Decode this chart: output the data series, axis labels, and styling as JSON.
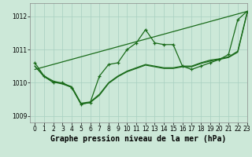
{
  "background_color": "#cce8d8",
  "grid_color": "#a8cfc0",
  "line_color": "#1a6b1a",
  "title": "Graphe pression niveau de la mer (hPa)",
  "xlim": [
    -0.5,
    23
  ],
  "ylim": [
    1008.8,
    1012.4
  ],
  "yticks": [
    1009,
    1010,
    1011,
    1012
  ],
  "xticks": [
    0,
    1,
    2,
    3,
    4,
    5,
    6,
    7,
    8,
    9,
    10,
    11,
    12,
    13,
    14,
    15,
    16,
    17,
    18,
    19,
    20,
    21,
    22,
    23
  ],
  "series_wiggly": {
    "x": [
      0,
      1,
      2,
      3,
      4,
      5,
      6,
      7,
      8,
      9,
      10,
      11,
      12,
      13,
      14,
      15,
      16,
      17,
      18,
      19,
      20,
      21,
      22,
      23
    ],
    "y": [
      1010.6,
      1010.2,
      1010.0,
      1010.0,
      1009.85,
      1009.35,
      1009.4,
      1010.2,
      1010.55,
      1010.6,
      1011.0,
      1011.2,
      1011.6,
      1011.2,
      1011.15,
      1011.15,
      1010.5,
      1010.4,
      1010.5,
      1010.6,
      1010.7,
      1010.85,
      1011.9,
      1012.15
    ]
  },
  "series_linear1": {
    "x": [
      0,
      23
    ],
    "y": [
      1010.4,
      1012.15
    ]
  },
  "series_smooth1": {
    "x": [
      0,
      1,
      2,
      3,
      4,
      5,
      6,
      7,
      8,
      9,
      10,
      11,
      12,
      13,
      14,
      15,
      16,
      17,
      18,
      19,
      20,
      21,
      22,
      23
    ],
    "y": [
      1010.5,
      1010.2,
      1010.05,
      1009.98,
      1009.88,
      1009.38,
      1009.42,
      1009.65,
      1010.0,
      1010.2,
      1010.35,
      1010.45,
      1010.55,
      1010.5,
      1010.45,
      1010.45,
      1010.5,
      1010.5,
      1010.6,
      1010.68,
      1010.72,
      1010.78,
      1010.95,
      1012.1
    ]
  },
  "series_smooth2": {
    "x": [
      0,
      1,
      2,
      3,
      4,
      5,
      6,
      7,
      8,
      9,
      10,
      11,
      12,
      13,
      14,
      15,
      16,
      17,
      18,
      19,
      20,
      21,
      22,
      23
    ],
    "y": [
      1010.5,
      1010.18,
      1010.02,
      1009.96,
      1009.86,
      1009.36,
      1009.4,
      1009.62,
      1009.98,
      1010.18,
      1010.33,
      1010.43,
      1010.53,
      1010.48,
      1010.43,
      1010.43,
      1010.48,
      1010.48,
      1010.58,
      1010.65,
      1010.7,
      1010.76,
      1010.92,
      1012.08
    ]
  },
  "title_fontsize": 7,
  "tick_fontsize": 5.5
}
